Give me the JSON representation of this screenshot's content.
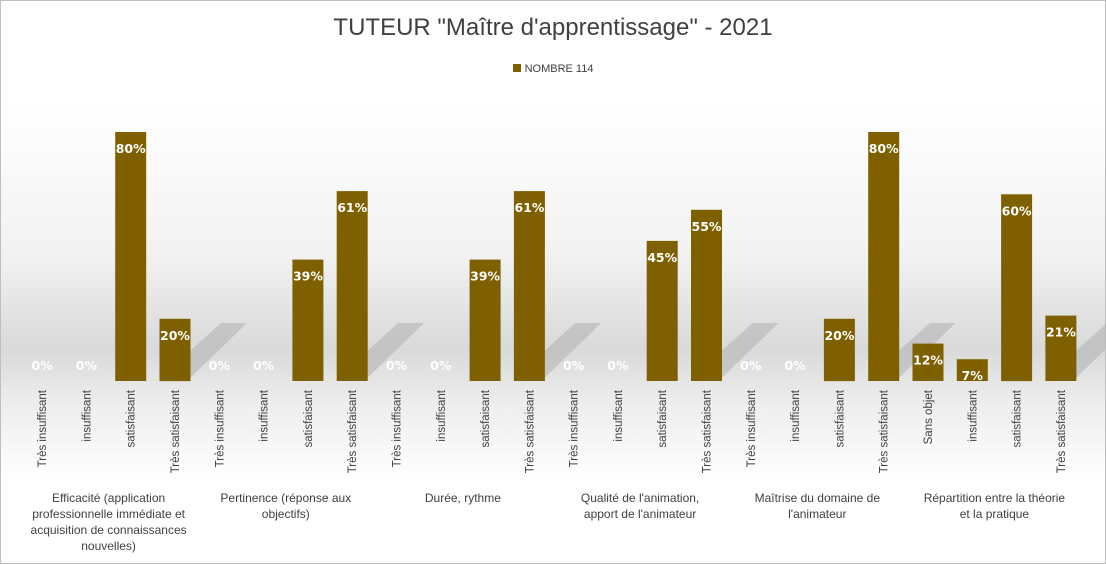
{
  "chart_data": {
    "type": "bar",
    "title": "TUTEUR \"Maître d'apprentissage\" - 2021",
    "legend": {
      "position": "top",
      "entries": [
        "NOMBRE 114"
      ]
    },
    "grid": false,
    "ylim": [
      0,
      0.85
    ],
    "colors": {
      "bar": "#7f6000",
      "data_label": "#ffffff",
      "text": "#404040"
    },
    "groups": [
      {
        "label": [
          "Efficacité (application",
          "professionnelle immédiate et",
          "acquisition de connaissances",
          "nouvelles)"
        ],
        "categories": [
          "Très insuffisant",
          "insuffisant",
          "satisfaisant",
          "Très satisfaisant"
        ],
        "values": [
          0,
          0,
          0.8,
          0.2
        ],
        "labels": [
          "0%",
          "0%",
          "80%",
          "20%"
        ]
      },
      {
        "label": [
          "Pertinence (réponse aux",
          "objectifs)"
        ],
        "categories": [
          "Très insuffisant",
          "insuffisant",
          "satisfaisant",
          "Très satisfaisant"
        ],
        "values": [
          0,
          0,
          0.39,
          0.61
        ],
        "labels": [
          "0%",
          "0%",
          "39%",
          "61%"
        ]
      },
      {
        "label": [
          "Durée, rythme"
        ],
        "categories": [
          "Très insuffisant",
          "insuffisant",
          "satisfaisant",
          "Très satisfaisant"
        ],
        "values": [
          0,
          0,
          0.39,
          0.61
        ],
        "labels": [
          "0%",
          "0%",
          "39%",
          "61%"
        ]
      },
      {
        "label": [
          "Qualité de l'animation,",
          "apport de l'animateur"
        ],
        "categories": [
          "Très insuffisant",
          "insuffisant",
          "satisfaisant",
          "Très satisfaisant"
        ],
        "values": [
          0,
          0,
          0.45,
          0.55
        ],
        "labels": [
          "0%",
          "0%",
          "45%",
          "55%"
        ]
      },
      {
        "label": [
          "Maîtrise du domaine de",
          "l'animateur"
        ],
        "categories": [
          "Très insuffisant",
          "insuffisant",
          "satisfaisant",
          "Très satisfaisant"
        ],
        "values": [
          0,
          0,
          0.2,
          0.8
        ],
        "labels": [
          "0%",
          "0%",
          "20%",
          "80%"
        ]
      },
      {
        "label": [
          "Répartition entre la théorie",
          "et la pratique"
        ],
        "categories": [
          "Sans objet",
          "insuffisant",
          "satisfaisant",
          "Très satisfaisant"
        ],
        "values": [
          0.12,
          0.07,
          0.6,
          0.21
        ],
        "labels": [
          "12%",
          "7%",
          "60%",
          "21%"
        ]
      }
    ]
  }
}
